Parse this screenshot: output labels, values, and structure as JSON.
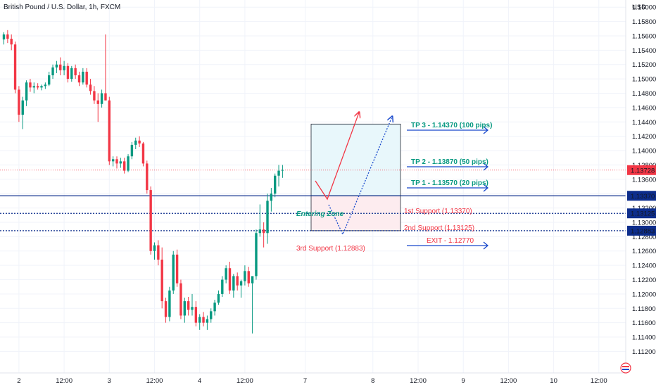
{
  "header": {
    "title": "British Pound / U.S. Dollar, 1h, FXCM",
    "currency": "USD"
  },
  "chart_data": {
    "type": "candlestick",
    "title": "British Pound / U.S. Dollar, 1h, FXCM",
    "ylabel": "USD",
    "ylim": [
      1.109,
      1.161
    ],
    "y_ticks": [
      1.112,
      1.114,
      1.116,
      1.118,
      1.12,
      1.122,
      1.124,
      1.126,
      1.128,
      1.13,
      1.132,
      1.134,
      1.136,
      1.138,
      1.14,
      1.142,
      1.144,
      1.146,
      1.148,
      1.15,
      1.152,
      1.154,
      1.156,
      1.158,
      1.16
    ],
    "x_ticks": [
      {
        "label": "2",
        "index": 4
      },
      {
        "label": "12:00",
        "index": 16
      },
      {
        "label": "3",
        "index": 28
      },
      {
        "label": "12:00",
        "index": 40
      },
      {
        "label": "4",
        "index": 52
      },
      {
        "label": "12:00",
        "index": 64
      },
      {
        "label": "7",
        "index": 80
      },
      {
        "label": "8",
        "index": 98
      },
      {
        "label": "12:00",
        "index": 110
      },
      {
        "label": "9",
        "index": 122
      },
      {
        "label": "12:00",
        "index": 134
      },
      {
        "label": "10",
        "index": 146
      },
      {
        "label": "12:00",
        "index": 158
      }
    ],
    "candles": [
      [
        1.1555,
        1.1565,
        1.1548,
        1.1562
      ],
      [
        1.1562,
        1.1568,
        1.155,
        1.1556
      ],
      [
        1.1556,
        1.1562,
        1.154,
        1.1548
      ],
      [
        1.1548,
        1.1552,
        1.148,
        1.1485
      ],
      [
        1.1485,
        1.149,
        1.144,
        1.145
      ],
      [
        1.145,
        1.1475,
        1.143,
        1.147
      ],
      [
        1.147,
        1.1498,
        1.1462,
        1.1495
      ],
      [
        1.1495,
        1.15,
        1.1482,
        1.1488
      ],
      [
        1.1488,
        1.1495,
        1.148,
        1.149
      ],
      [
        1.149,
        1.1494,
        1.1485,
        1.1488
      ],
      [
        1.1488,
        1.1492,
        1.1484,
        1.149
      ],
      [
        1.149,
        1.1495,
        1.1486,
        1.1492
      ],
      [
        1.1492,
        1.151,
        1.149,
        1.1505
      ],
      [
        1.1505,
        1.152,
        1.15,
        1.1516
      ],
      [
        1.1516,
        1.1525,
        1.1508,
        1.152
      ],
      [
        1.152,
        1.153,
        1.1505,
        1.1512
      ],
      [
        1.1512,
        1.1525,
        1.1505,
        1.1518
      ],
      [
        1.1518,
        1.1522,
        1.1495,
        1.15
      ],
      [
        1.15,
        1.1518,
        1.1496,
        1.1515
      ],
      [
        1.1515,
        1.152,
        1.15,
        1.1505
      ],
      [
        1.1505,
        1.151,
        1.149,
        1.1495
      ],
      [
        1.1495,
        1.1515,
        1.1492,
        1.151
      ],
      [
        1.151,
        1.1515,
        1.1488,
        1.1492
      ],
      [
        1.1492,
        1.15,
        1.1478,
        1.1483
      ],
      [
        1.1483,
        1.149,
        1.1465,
        1.147
      ],
      [
        1.147,
        1.148,
        1.144,
        1.1465
      ],
      [
        1.1465,
        1.1485,
        1.146,
        1.148
      ],
      [
        1.148,
        1.1562,
        1.147,
        1.147
      ],
      [
        1.147,
        1.1475,
        1.138,
        1.1385
      ],
      [
        1.1385,
        1.1392,
        1.1378,
        1.1388
      ],
      [
        1.1388,
        1.1392,
        1.1375,
        1.1382
      ],
      [
        1.1382,
        1.139,
        1.1376,
        1.1385
      ],
      [
        1.1385,
        1.139,
        1.1368,
        1.1372
      ],
      [
        1.1372,
        1.1395,
        1.137,
        1.1392
      ],
      [
        1.1392,
        1.1412,
        1.1388,
        1.1408
      ],
      [
        1.1408,
        1.1418,
        1.1402,
        1.1414
      ],
      [
        1.1414,
        1.142,
        1.1405,
        1.141
      ],
      [
        1.141,
        1.1412,
        1.1378,
        1.1382
      ],
      [
        1.1382,
        1.1386,
        1.134,
        1.1345
      ],
      [
        1.1345,
        1.135,
        1.1255,
        1.126
      ],
      [
        1.126,
        1.1272,
        1.1248,
        1.1268
      ],
      [
        1.1268,
        1.1275,
        1.124,
        1.1248
      ],
      [
        1.1248,
        1.1265,
        1.118,
        1.119
      ],
      [
        1.119,
        1.1195,
        1.116,
        1.1168
      ],
      [
        1.1168,
        1.121,
        1.1162,
        1.1205
      ],
      [
        1.1205,
        1.126,
        1.12,
        1.1255
      ],
      [
        1.1255,
        1.1262,
        1.121,
        1.1215
      ],
      [
        1.1215,
        1.122,
        1.1165,
        1.117
      ],
      [
        1.117,
        1.1195,
        1.116,
        1.119
      ],
      [
        1.119,
        1.1196,
        1.117,
        1.1178
      ],
      [
        1.1178,
        1.12,
        1.117,
        1.1182
      ],
      [
        1.1182,
        1.119,
        1.1155,
        1.116
      ],
      [
        1.116,
        1.1172,
        1.115,
        1.1168
      ],
      [
        1.1168,
        1.1175,
        1.1155,
        1.116
      ],
      [
        1.116,
        1.117,
        1.115,
        1.1165
      ],
      [
        1.1165,
        1.118,
        1.116,
        1.1176
      ],
      [
        1.1176,
        1.1192,
        1.117,
        1.1188
      ],
      [
        1.1188,
        1.1205,
        1.1185,
        1.12
      ],
      [
        1.12,
        1.1225,
        1.1196,
        1.122
      ],
      [
        1.122,
        1.124,
        1.1215,
        1.1236
      ],
      [
        1.1236,
        1.1245,
        1.12,
        1.1205
      ],
      [
        1.1205,
        1.1228,
        1.1195,
        1.1225
      ],
      [
        1.1225,
        1.123,
        1.1205,
        1.1212
      ],
      [
        1.1212,
        1.122,
        1.1195,
        1.1218
      ],
      [
        1.1218,
        1.124,
        1.1212,
        1.1232
      ],
      [
        1.1232,
        1.1238,
        1.121,
        1.1215
      ],
      [
        1.1215,
        1.122,
        1.1145,
        1.1225
      ],
      [
        1.1225,
        1.129,
        1.122,
        1.1285
      ],
      [
        1.1285,
        1.1325,
        1.128,
        1.129
      ],
      [
        1.129,
        1.13,
        1.1265,
        1.1285
      ],
      [
        1.1285,
        1.134,
        1.127,
        1.133
      ],
      [
        1.133,
        1.1348,
        1.1315,
        1.134
      ],
      [
        1.134,
        1.1368,
        1.1335,
        1.1365
      ],
      [
        1.1365,
        1.138,
        1.135,
        1.1372
      ],
      [
        1.1372,
        1.138,
        1.1362,
        1.1373
      ]
    ],
    "current_price": 1.13728,
    "current_price_label": "1.13728",
    "levels": [
      {
        "name": "1st Support",
        "value": 1.1337,
        "label": "1st Support (1.13370)",
        "price_label": "1.13370",
        "color": "#0d2d8c",
        "style": "solid"
      },
      {
        "name": "2nd Support",
        "value": 1.13125,
        "label": "2nd Support (1.13125)",
        "price_label": "1.13125",
        "color": "#0d2d8c",
        "style": "dotted"
      },
      {
        "name": "3rd Support",
        "value": 1.12883,
        "label": "3rd Support (1.12883)",
        "price_label": "1.12883",
        "color": "#0d2d8c",
        "style": "dotted"
      }
    ],
    "targets": [
      {
        "label": "TP 3 - 1.14370 (100 pips)",
        "value": 1.1437,
        "color": "#089981"
      },
      {
        "label": "TP 2 - 1.13870 (50 pips)",
        "value": 1.1387,
        "color": "#089981"
      },
      {
        "label": "TP 1 - 1.13570 (20 pips)",
        "value": 1.1357,
        "color": "#089981"
      },
      {
        "label": "EXIT - 1.12770",
        "value": 1.1277,
        "color": "#f23645"
      }
    ],
    "entering_zone_label": "Entering Zone",
    "colors": {
      "up": "#089981",
      "down": "#f23645",
      "level": "#0d2d8c",
      "arrow": "#1848cc",
      "grid": "#f0f3fa",
      "profit_fill": "#e8f7fb",
      "loss_fill": "#fdecef"
    }
  }
}
